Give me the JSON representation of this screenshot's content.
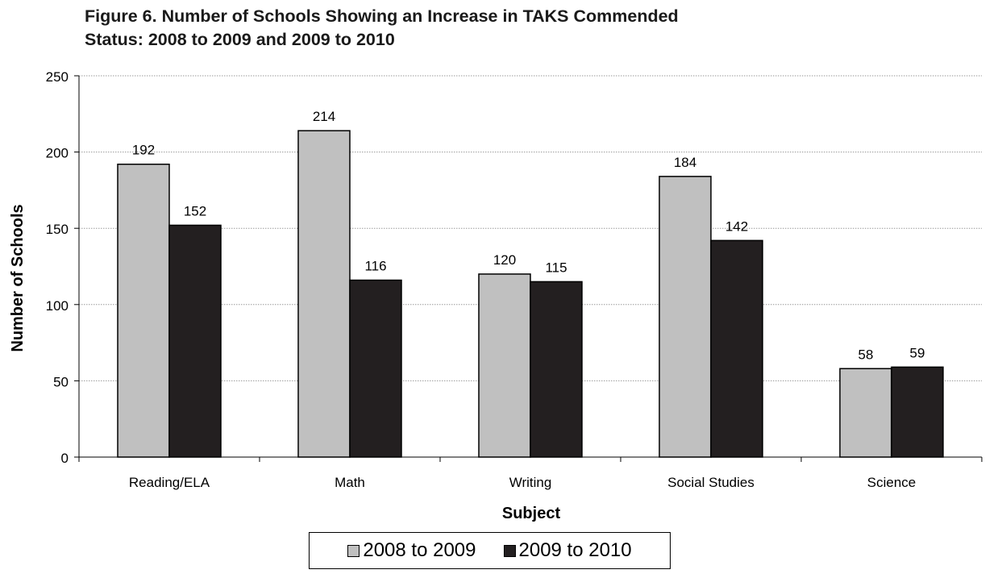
{
  "chart_data": {
    "type": "bar",
    "title_line1": "Figure 6. Number of Schools Showing an Increase in TAKS Commended",
    "title_line2": "Status: 2008 to 2009 and 2009 to 2010",
    "xlabel": "Subject",
    "ylabel": "Number of Schools",
    "ylim": [
      0,
      250
    ],
    "yticks": [
      0,
      50,
      100,
      150,
      200,
      250
    ],
    "categories": [
      "Reading/ELA",
      "Math",
      "Writing",
      "Social Studies",
      "Science"
    ],
    "series": [
      {
        "name": "2008 to 2009",
        "color": "#c0c0c0",
        "values": [
          192,
          214,
          120,
          184,
          58
        ]
      },
      {
        "name": "2009 to 2010",
        "color": "#231f20",
        "values": [
          152,
          116,
          115,
          142,
          59
        ]
      }
    ],
    "grid": true,
    "legend_position": "bottom"
  }
}
